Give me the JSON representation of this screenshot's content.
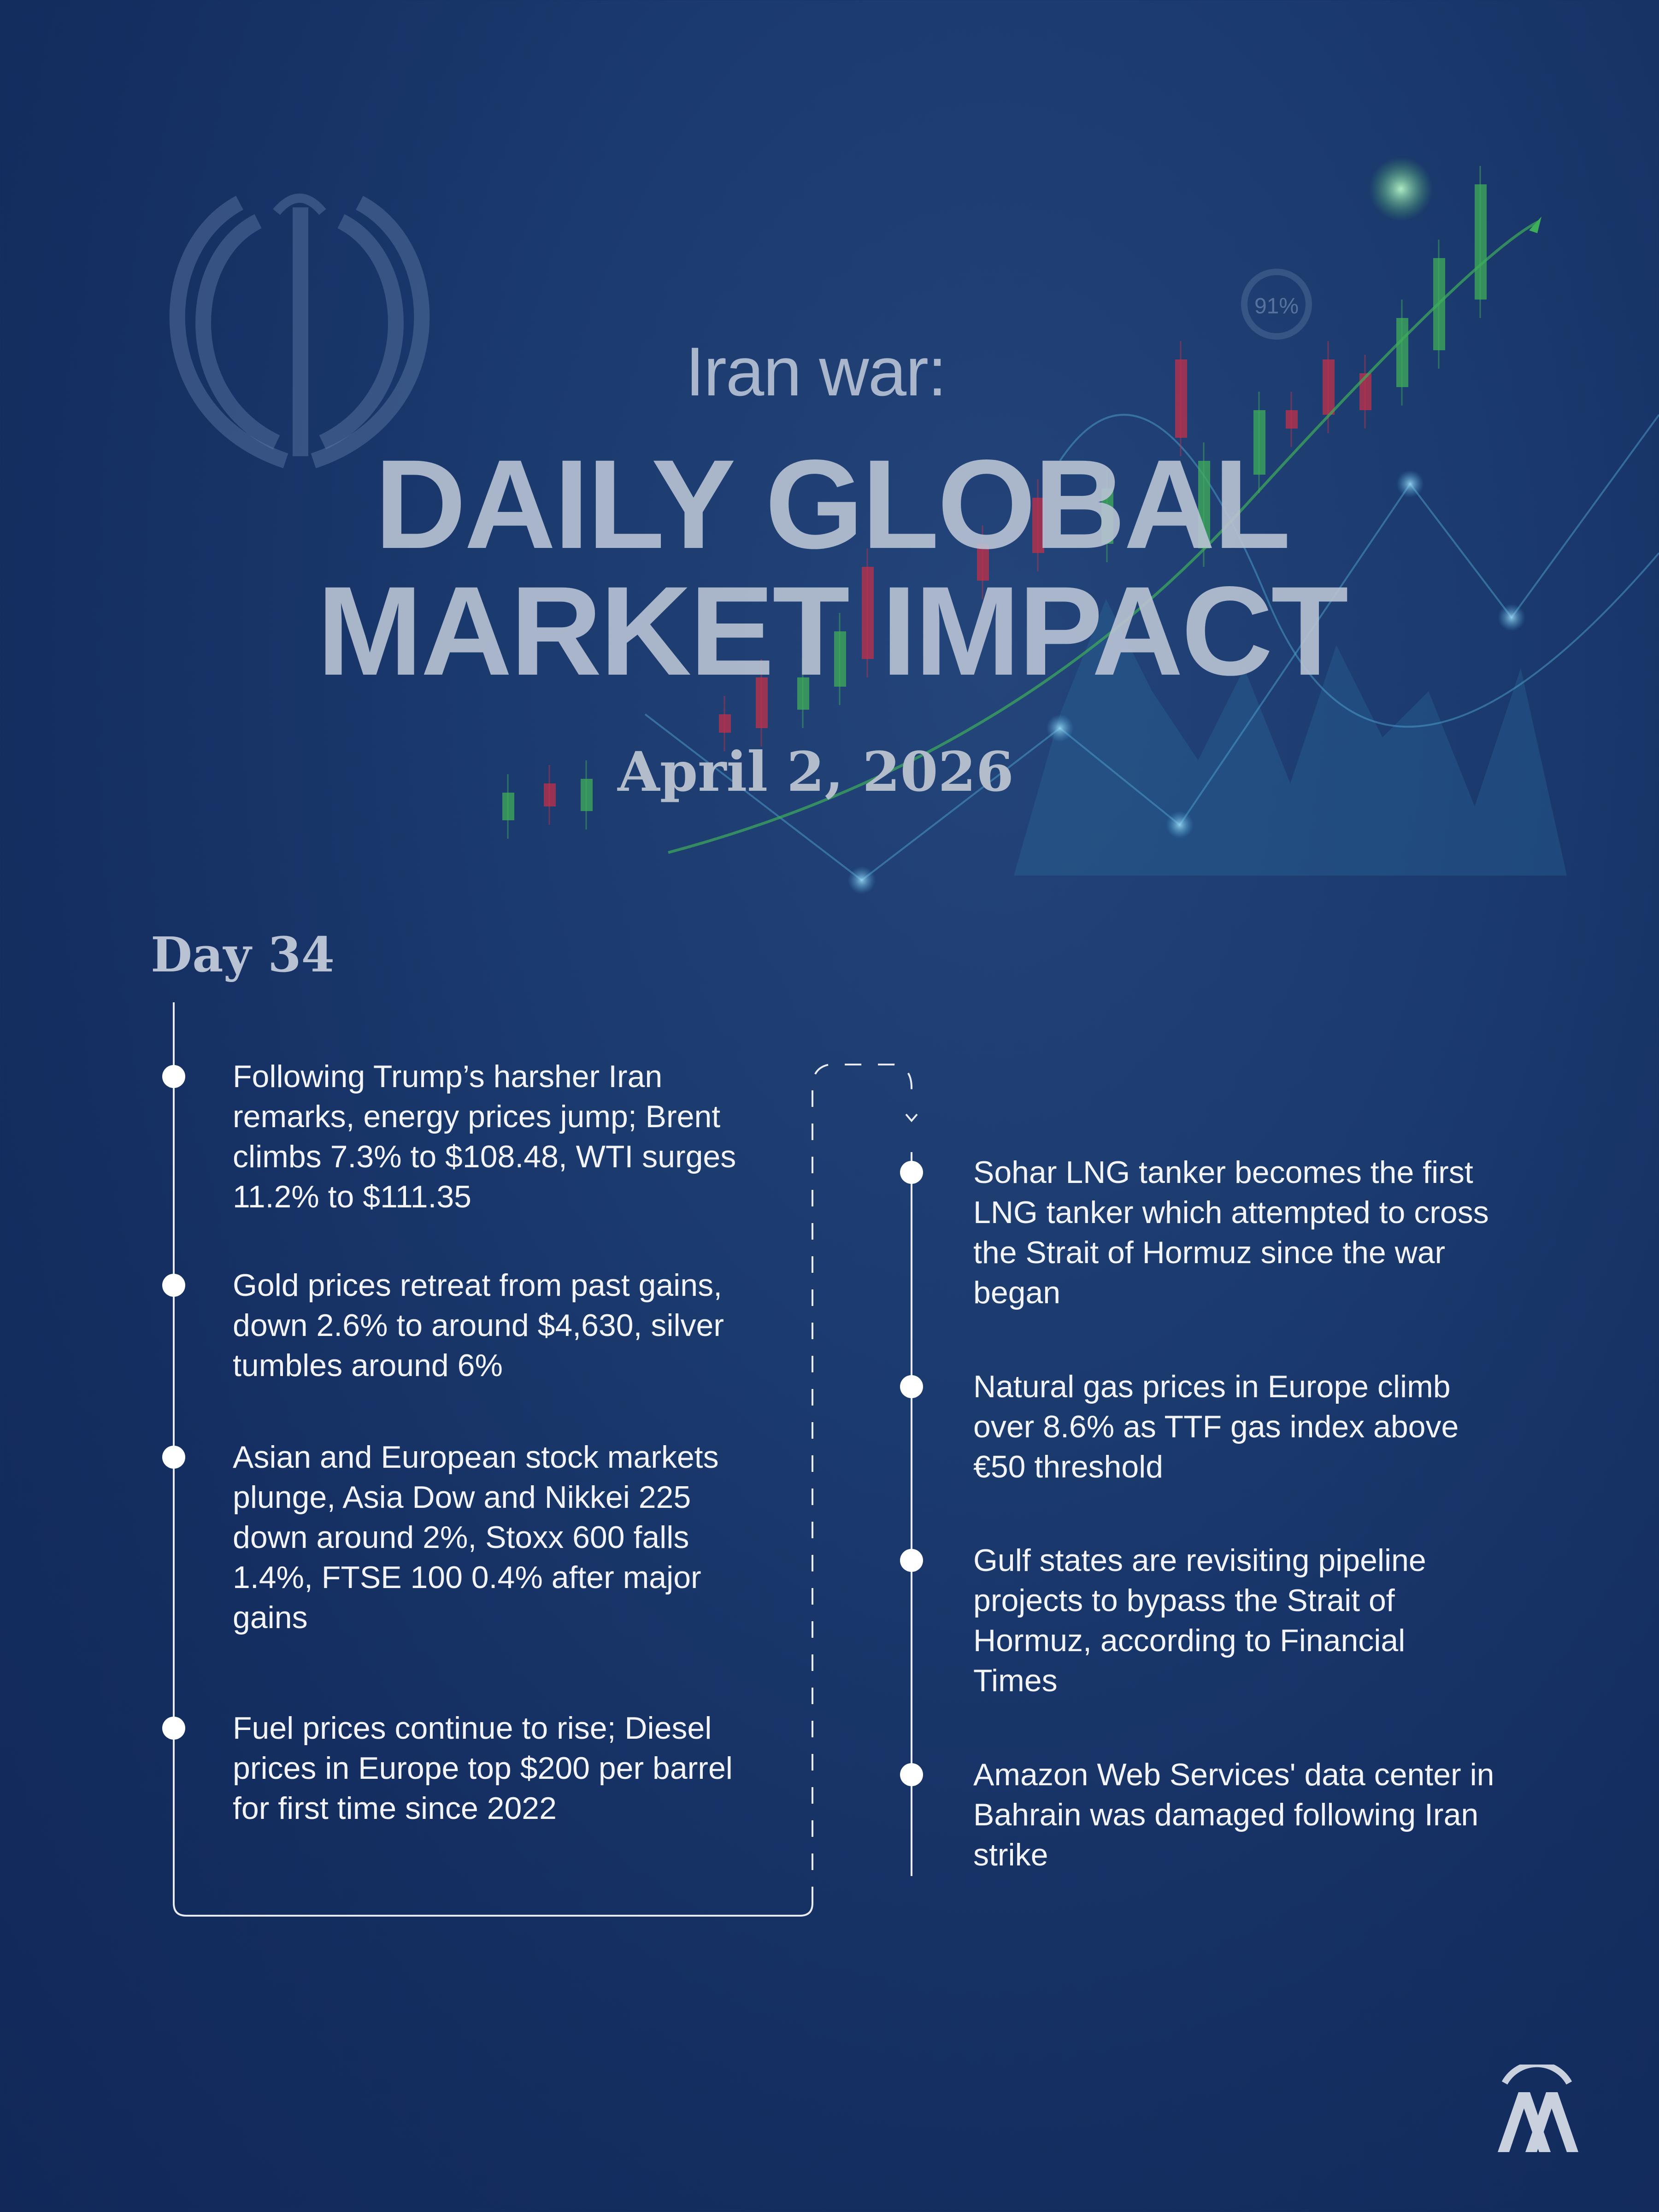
{
  "header": {
    "kicker": "Iran war:",
    "title_line1": "DAILY GLOBAL",
    "title_line2": "MARKET IMPACT",
    "date": "April 2, 2026"
  },
  "day_label": "Day 34",
  "timeline_left": [
    {
      "text": "Following Trump’s harsher Iran remarks, energy prices jump; Brent climbs 7.3% to $108.48, WTI surges 11.2% to $111.35"
    },
    {
      "text": "Gold prices retreat from past gains, down 2.6% to around $4,630, silver tumbles around 6%"
    },
    {
      "text": "Asian and European stock markets plunge, Asia Dow and Nikkei 225 down around 2%, Stoxx 600 falls 1.4%, FTSE 100 0.4% after major gains"
    },
    {
      "text": "Fuel prices continue to rise; Diesel prices in Europe top $200 per barrel for first time since 2022"
    }
  ],
  "timeline_right": [
    {
      "text": "Sohar LNG tanker becomes the first LNG tanker which attempted to cross the Strait of Hormuz since the war began"
    },
    {
      "text": "Natural gas prices in Europe climb over 8.6% as TTF gas index above €50 threshold"
    },
    {
      "text": "Gulf states are revisiting pipeline projects to bypass the Strait of Hormuz, according to Financial Times"
    },
    {
      "text": "Amazon Web Services' data center in Bahrain was damaged following Iran strike"
    }
  ],
  "background": {
    "gauge_label": "91%",
    "icons": [
      "iran-emblem-icon",
      "candlestick-chart-icon",
      "network-lines-icon"
    ]
  },
  "logo": {
    "text": "AA"
  },
  "colors": {
    "background": "#1b3a6e",
    "candle_up": "#3fae5a",
    "candle_down": "#c0304a",
    "text": "#f2f4f8"
  }
}
